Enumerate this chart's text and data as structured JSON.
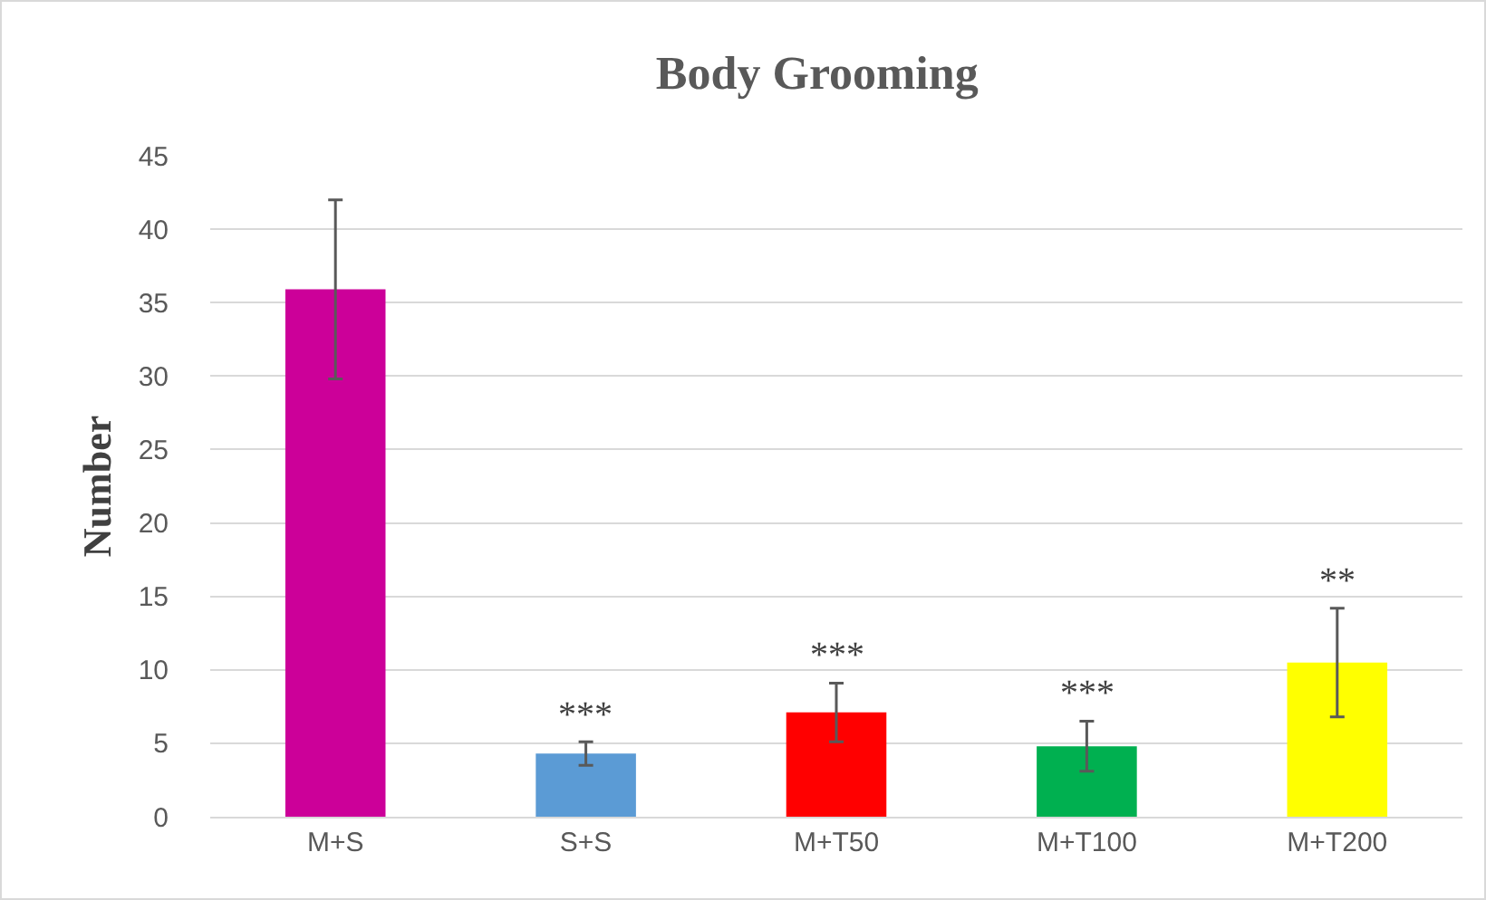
{
  "chart_data": {
    "type": "bar",
    "title": "Body Grooming",
    "ylabel": "Number",
    "categories": [
      "M+S",
      "S+S",
      "M+T50",
      "M+T100",
      "M+T200"
    ],
    "values": [
      35.9,
      4.3,
      7.1,
      4.8,
      10.5
    ],
    "colors": [
      "#cc0099",
      "#5b9bd5",
      "#ff0000",
      "#00b050",
      "#ffff00"
    ],
    "errors": [
      6.1,
      0.8,
      2,
      1.7,
      3.7
    ],
    "ylim": [
      0,
      45
    ],
    "yticks": [
      0,
      5,
      10,
      15,
      20,
      25,
      30,
      35,
      40,
      45
    ],
    "grid": "y",
    "annotations": [
      {
        "text": "***",
        "x": "S+S",
        "y": 5.1
      },
      {
        "text": "***",
        "x": "M+T50",
        "y": 9.1
      },
      {
        "text": "***",
        "x": "M+T100",
        "y": 6.5
      },
      {
        "text": "**",
        "x": "M+T200",
        "y": 14.2
      }
    ]
  }
}
